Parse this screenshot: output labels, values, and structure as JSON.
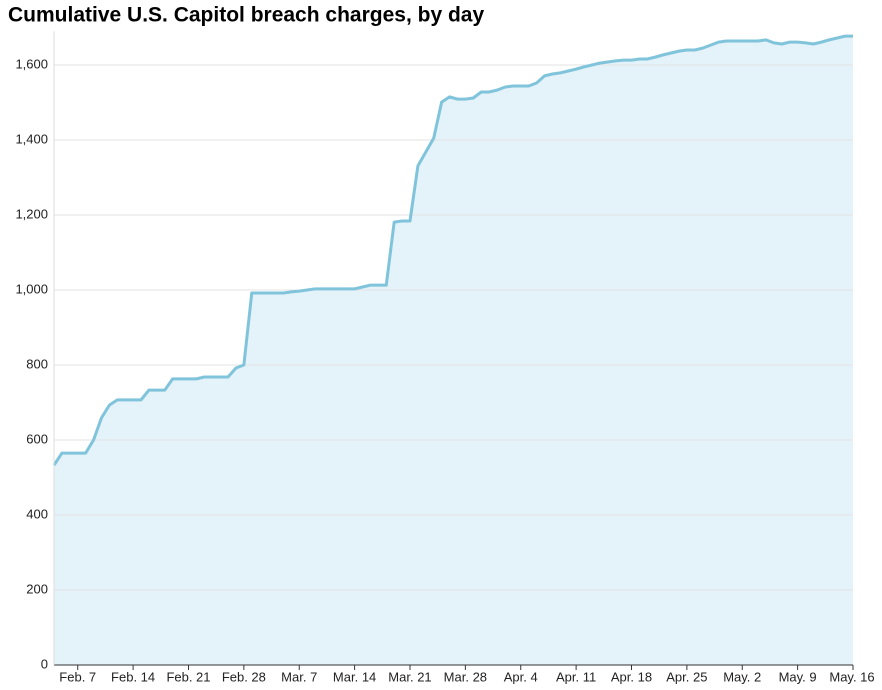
{
  "chart_data": {
    "type": "area",
    "title": "Cumulative U.S. Capitol breach charges, by day",
    "categories": [
      null,
      null,
      null,
      "Feb. 7",
      null,
      null,
      null,
      null,
      null,
      null,
      "Feb. 14",
      null,
      null,
      null,
      null,
      null,
      null,
      "Feb. 21",
      null,
      null,
      null,
      null,
      null,
      null,
      "Feb. 28",
      null,
      null,
      null,
      null,
      null,
      null,
      "Mar. 7",
      null,
      null,
      null,
      null,
      null,
      null,
      "Mar. 14",
      null,
      null,
      null,
      null,
      null,
      null,
      "Mar. 21",
      null,
      null,
      null,
      null,
      null,
      null,
      "Mar. 28",
      null,
      null,
      null,
      null,
      null,
      null,
      "Apr. 4",
      null,
      null,
      null,
      null,
      null,
      null,
      "Apr. 11",
      null,
      null,
      null,
      null,
      null,
      null,
      "Apr. 18",
      null,
      null,
      null,
      null,
      null,
      null,
      "Apr. 25",
      null,
      null,
      null,
      null,
      null,
      null,
      "May. 2",
      null,
      null,
      null,
      null,
      null,
      null,
      "May. 9",
      null,
      null,
      null,
      null,
      null,
      null,
      "May. 16"
    ],
    "values": [
      533,
      565,
      565,
      565,
      565,
      600,
      659,
      693,
      707,
      707,
      707,
      707,
      733,
      733,
      733,
      763,
      763,
      763,
      763,
      768,
      768,
      768,
      768,
      792,
      800,
      992,
      992,
      992,
      992,
      992,
      995,
      997,
      1000,
      1003,
      1003,
      1003,
      1003,
      1003,
      1003,
      1008,
      1013,
      1013,
      1013,
      1181,
      1184,
      1184,
      1331,
      1368,
      1405,
      1501,
      1515,
      1509,
      1509,
      1512,
      1528,
      1528,
      1533,
      1541,
      1544,
      1544,
      1544,
      1552,
      1571,
      1576,
      1579,
      1584,
      1589,
      1595,
      1600,
      1605,
      1608,
      1611,
      1613,
      1613,
      1616,
      1616,
      1621,
      1627,
      1632,
      1637,
      1640,
      1640,
      1645,
      1653,
      1661,
      1664,
      1664,
      1664,
      1664,
      1664,
      1667,
      1659,
      1656,
      1661,
      1661,
      1659,
      1656,
      1661,
      1667,
      1672,
      1677,
      1677
    ],
    "color": "#80c4db",
    "fill_color": "#e4f2f9",
    "ylim": [
      0,
      1690
    ],
    "yticks": [
      0,
      200,
      400,
      600,
      800,
      {
        "value": 1000,
        "label": "1,000"
      },
      {
        "value": 1200,
        "label": "1,200"
      },
      {
        "value": 1400,
        "label": "1,400"
      },
      {
        "value": 1600,
        "label": "1,600"
      }
    ],
    "grid": true
  }
}
